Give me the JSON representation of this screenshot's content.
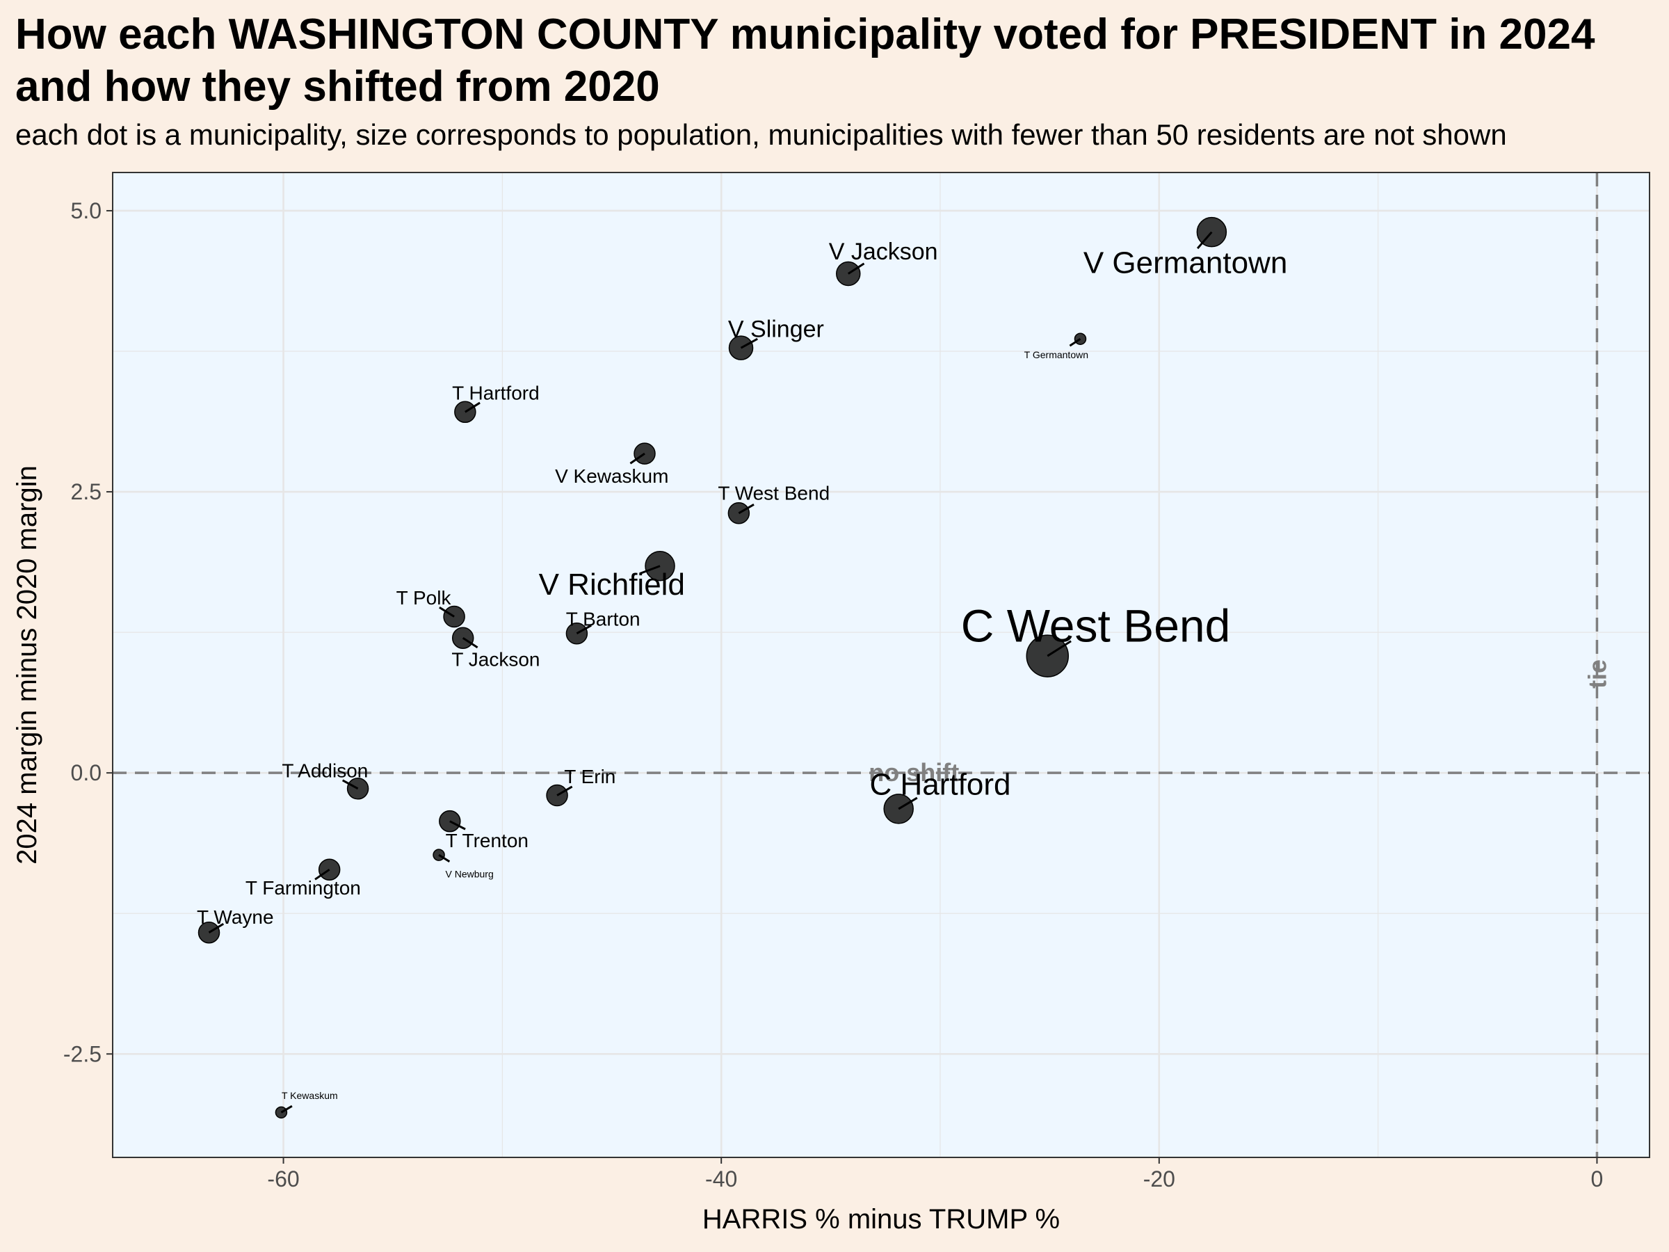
{
  "title": "How each WASHINGTON COUNTY municipality voted for PRESIDENT in 2024\nand how they shifted from 2020",
  "subtitle": "each dot is a municipality, size corresponds to population, municipalities with fewer than 50 residents are not shown",
  "chart_data": {
    "type": "scatter",
    "xlabel": "HARRIS % minus TRUMP %",
    "ylabel": "2024 margin minus 2020 margin",
    "xlim": [
      -67.8,
      2.4
    ],
    "ylim": [
      -3.42,
      5.34
    ],
    "xticks": [
      -60,
      -40,
      -20,
      0
    ],
    "xtick_labels": [
      "-60",
      "-40",
      "-20",
      "0"
    ],
    "yticks": [
      -2.5,
      0,
      2.5,
      5
    ],
    "ytick_labels": [
      "-2.5",
      "0.0",
      "2.5",
      "5.0"
    ],
    "grid": true,
    "reference_lines": [
      {
        "axis": "y",
        "value": 0,
        "label": "no shift",
        "style": "dashed"
      },
      {
        "axis": "x",
        "value": 0,
        "label": "tie",
        "style": "dashed"
      }
    ],
    "colors": {
      "page_background": "#fbefe4",
      "panel_background": "#eef7ff",
      "point": "#262626",
      "reference_line": "#808080",
      "grid": "#e6e6e6"
    },
    "points": [
      {
        "name": "V Germantown",
        "x": -17.6,
        "y": 4.81,
        "size": "large",
        "label_dx": -1.2,
        "label_dy": -0.27
      },
      {
        "name": "V Jackson",
        "x": -34.2,
        "y": 4.44,
        "size": "medium",
        "label_dx": 1.6,
        "label_dy": 0.2
      },
      {
        "name": "V Slinger",
        "x": -39.1,
        "y": 3.78,
        "size": "medium",
        "label_dx": 1.6,
        "label_dy": 0.17
      },
      {
        "name": "T Germantown",
        "x": -23.6,
        "y": 3.86,
        "size": "tiny",
        "label_dx": -1.1,
        "label_dy": -0.14
      },
      {
        "name": "T Hartford",
        "x": -51.7,
        "y": 3.21,
        "size": "small",
        "label_dx": 1.4,
        "label_dy": 0.17
      },
      {
        "name": "V Kewaskum",
        "x": -43.5,
        "y": 2.84,
        "size": "small",
        "label_dx": -1.5,
        "label_dy": -0.2
      },
      {
        "name": "T West Bend",
        "x": -39.2,
        "y": 2.31,
        "size": "small",
        "label_dx": 1.6,
        "label_dy": 0.18
      },
      {
        "name": "V Richfield",
        "x": -42.8,
        "y": 1.84,
        "size": "large",
        "label_dx": -2.2,
        "label_dy": -0.16
      },
      {
        "name": "T Polk",
        "x": -52.2,
        "y": 1.39,
        "size": "small",
        "label_dx": -1.4,
        "label_dy": 0.17
      },
      {
        "name": "T Jackson",
        "x": -51.8,
        "y": 1.2,
        "size": "small",
        "label_dx": 1.5,
        "label_dy": -0.19
      },
      {
        "name": "T Barton",
        "x": -46.6,
        "y": 1.24,
        "size": "small",
        "label_dx": 1.2,
        "label_dy": 0.13
      },
      {
        "name": "C West Bend",
        "x": -25.1,
        "y": 1.04,
        "size": "xlarge",
        "label_dx": 2.2,
        "label_dy": 0.27
      },
      {
        "name": "T Addison",
        "x": -56.6,
        "y": -0.14,
        "size": "small",
        "label_dx": -1.5,
        "label_dy": 0.16
      },
      {
        "name": "T Erin",
        "x": -47.5,
        "y": -0.2,
        "size": "small",
        "label_dx": 1.5,
        "label_dy": 0.17
      },
      {
        "name": "C Hartford",
        "x": -31.9,
        "y": -0.32,
        "size": "large",
        "label_dx": 1.9,
        "label_dy": 0.22
      },
      {
        "name": "T Trenton",
        "x": -52.4,
        "y": -0.43,
        "size": "small",
        "label_dx": 1.7,
        "label_dy": -0.17
      },
      {
        "name": "V Newburg",
        "x": -52.9,
        "y": -0.73,
        "size": "tiny",
        "label_dx": 1.4,
        "label_dy": -0.17
      },
      {
        "name": "T Farmington",
        "x": -57.9,
        "y": -0.86,
        "size": "small",
        "label_dx": -1.2,
        "label_dy": -0.16
      },
      {
        "name": "T Wayne",
        "x": -63.4,
        "y": -1.42,
        "size": "small",
        "label_dx": 1.2,
        "label_dy": 0.14
      },
      {
        "name": "T Kewaskum",
        "x": -60.1,
        "y": -3.02,
        "size": "tiny",
        "label_dx": 1.3,
        "label_dy": 0.15
      }
    ]
  }
}
